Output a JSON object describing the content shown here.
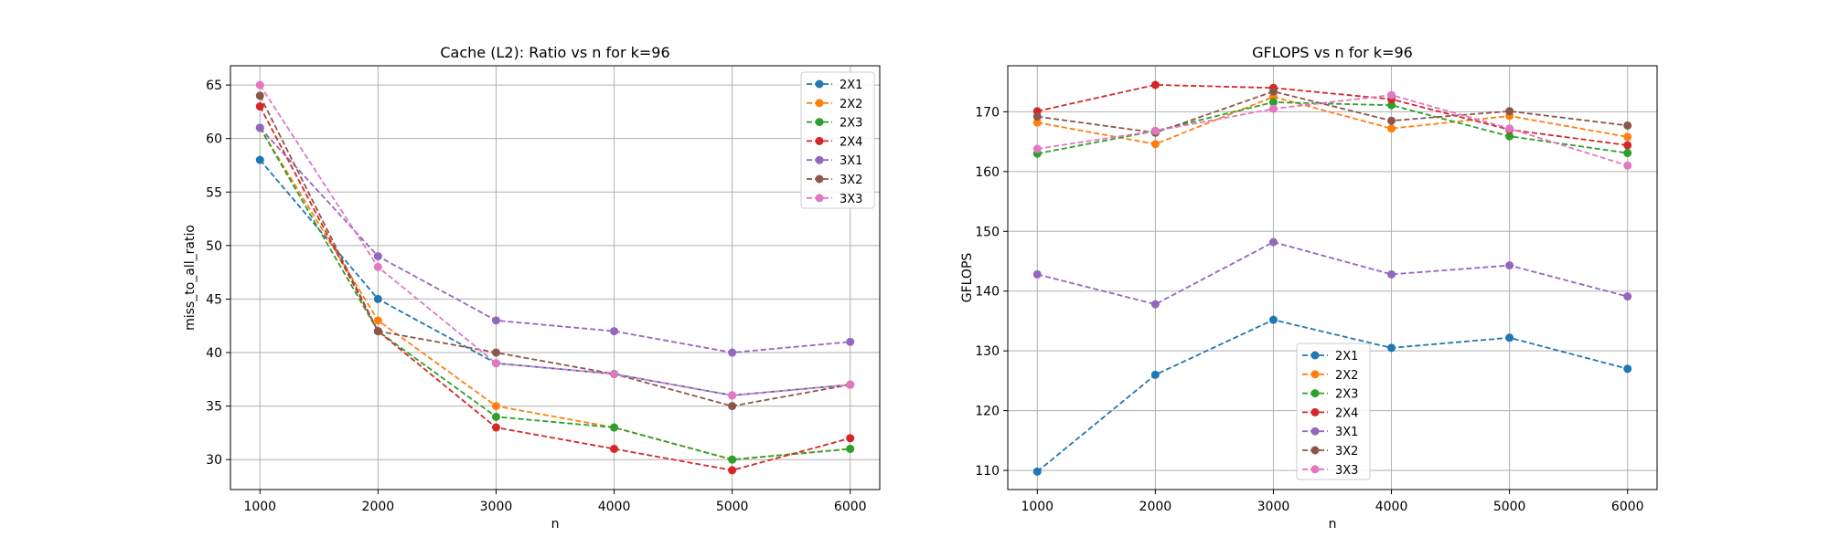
{
  "chart_data": [
    {
      "type": "line",
      "title": "Cache (L2): Ratio vs n for k=96",
      "xlabel": "n",
      "ylabel": "miss_to_all_ratio",
      "x": [
        1000,
        2000,
        3000,
        4000,
        5000,
        6000
      ],
      "xlim": [
        750,
        6250
      ],
      "ylim": [
        27.2,
        66.8
      ],
      "xticks": [
        1000,
        2000,
        3000,
        4000,
        5000,
        6000
      ],
      "yticks": [
        30,
        35,
        40,
        45,
        50,
        55,
        60,
        65
      ],
      "grid": true,
      "legend_position": "top-right",
      "series": [
        {
          "name": "2X1",
          "color": "#1f77b4",
          "values": [
            58,
            45,
            39,
            38,
            36,
            37
          ]
        },
        {
          "name": "2X2",
          "color": "#ff7f0e",
          "values": [
            61,
            43,
            35,
            33,
            30,
            31
          ]
        },
        {
          "name": "2X3",
          "color": "#2ca02c",
          "values": [
            61,
            42,
            34,
            33,
            30,
            31
          ]
        },
        {
          "name": "2X4",
          "color": "#d62728",
          "values": [
            63,
            42,
            33,
            31,
            29,
            32
          ]
        },
        {
          "name": "3X1",
          "color": "#9467bd",
          "values": [
            61,
            49,
            43,
            42,
            40,
            41
          ]
        },
        {
          "name": "3X2",
          "color": "#8c564b",
          "values": [
            64,
            42,
            40,
            38,
            35,
            37
          ]
        },
        {
          "name": "3X3",
          "color": "#e377c2",
          "values": [
            65,
            48,
            39,
            38,
            36,
            37
          ]
        }
      ]
    },
    {
      "type": "line",
      "title": "GFLOPS vs n for k=96",
      "xlabel": "n",
      "ylabel": "GFLOPS",
      "x": [
        1000,
        2000,
        3000,
        4000,
        5000,
        6000
      ],
      "xlim": [
        750,
        6250
      ],
      "ylim": [
        106.8,
        177.7
      ],
      "xticks": [
        1000,
        2000,
        3000,
        4000,
        5000,
        6000
      ],
      "yticks": [
        110,
        120,
        130,
        140,
        150,
        160,
        170
      ],
      "grid": true,
      "legend_position": "lower-center",
      "series": [
        {
          "name": "2X1",
          "color": "#1f77b4",
          "values": [
            109.8,
            126.0,
            135.2,
            130.5,
            132.2,
            127.0
          ]
        },
        {
          "name": "2X2",
          "color": "#ff7f0e",
          "values": [
            168.2,
            164.6,
            172.5,
            167.2,
            169.3,
            165.8
          ]
        },
        {
          "name": "2X3",
          "color": "#2ca02c",
          "values": [
            163.0,
            166.8,
            171.6,
            171.1,
            165.9,
            163.1
          ]
        },
        {
          "name": "2X4",
          "color": "#d62728",
          "values": [
            170.1,
            174.5,
            174.0,
            172.1,
            167.0,
            164.4
          ]
        },
        {
          "name": "3X1",
          "color": "#9467bd",
          "values": [
            142.8,
            137.8,
            148.2,
            142.8,
            144.3,
            139.1
          ]
        },
        {
          "name": "3X2",
          "color": "#8c564b",
          "values": [
            169.2,
            166.5,
            173.4,
            168.5,
            170.1,
            167.7
          ]
        },
        {
          "name": "3X3",
          "color": "#e377c2",
          "values": [
            163.8,
            166.8,
            170.5,
            172.8,
            167.2,
            161.0
          ]
        }
      ]
    }
  ]
}
